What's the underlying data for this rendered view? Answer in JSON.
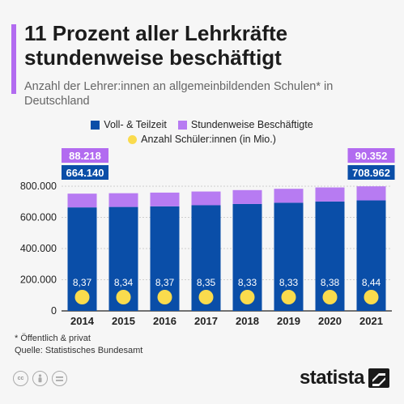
{
  "title": "11 Prozent aller Lehrkräfte stundenweise beschäftigt",
  "subtitle": "Anzahl der Lehrer:innen an allgemeinbildenden Schulen* in Deutschland",
  "legend": {
    "series1": "Voll- & Teilzeit",
    "series2": "Stundenweise Beschäftigte",
    "series3": "Anzahl Schüler:innen (in Mio.)"
  },
  "colors": {
    "accent": "#b26bf0",
    "vollzeit": "#0a4ea8",
    "stundenweise": "#b77bf2",
    "schueler": "#fadb4d",
    "callout_top": "#b26bf0",
    "callout_bottom": "#0a4ea8"
  },
  "chart_data": {
    "type": "bar",
    "stacked": true,
    "categories": [
      "2014",
      "2015",
      "2016",
      "2017",
      "2018",
      "2019",
      "2020",
      "2021"
    ],
    "series": [
      {
        "name": "Voll- & Teilzeit",
        "values": [
          664140,
          667000,
          671000,
          678000,
          686000,
          694000,
          702000,
          708962
        ]
      },
      {
        "name": "Stundenweise Beschäftigte",
        "values": [
          88218,
          88000,
          88000,
          88000,
          89000,
          89500,
          90000,
          90352
        ]
      }
    ],
    "students": {
      "name": "Anzahl Schüler:innen (in Mio.)",
      "values": [
        "8,37",
        "8,34",
        "8,37",
        "8,35",
        "8,33",
        "8,33",
        "8,38",
        "8,44"
      ]
    },
    "callouts": [
      {
        "index": 0,
        "top": "88.218",
        "bottom": "664.140"
      },
      {
        "index": 7,
        "top": "90.352",
        "bottom": "708.962"
      }
    ],
    "yticks": [
      {
        "value": 0,
        "label": "0"
      },
      {
        "value": 200000,
        "label": "200.000"
      },
      {
        "value": 400000,
        "label": "400.000"
      },
      {
        "value": 600000,
        "label": "600.000"
      },
      {
        "value": 800000,
        "label": "800.000"
      }
    ],
    "ylim": [
      0,
      800000
    ],
    "grid": true,
    "legend_position": "top"
  },
  "footnote": {
    "line1": "* Öffentlich & privat",
    "line2": "Quelle: Statistisches Bundesamt"
  },
  "brand": "statista"
}
